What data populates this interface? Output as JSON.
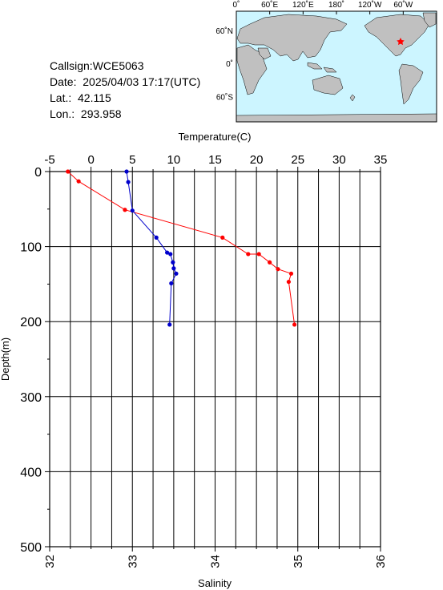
{
  "info": {
    "callsign": "Callsign:WCE5063",
    "date": "Date:  2025/04/03 17:17(UTC)",
    "lat": "Lat.:  42.115",
    "lon": "Lon.:  293.958"
  },
  "map": {
    "top_labels": [
      "0˚",
      "60˚E",
      "120˚E",
      "180˚",
      "120˚W",
      "60˚W"
    ],
    "left_labels": [
      "60˚N",
      "0˚",
      "60˚S"
    ],
    "marker_color": "#ff0000",
    "ocean_color": "#ccf5ff",
    "land_color": "#c0c0c0"
  },
  "chart_data": {
    "type": "line",
    "top_axis_label": "Temperature(C)",
    "bottom_axis_label": "Salinity",
    "ylabel": "Depth(m)",
    "temperature_ticks": [
      "-5",
      "0",
      "5",
      "10",
      "15",
      "20",
      "25",
      "30",
      "35"
    ],
    "salinity_ticks": [
      "32",
      "33",
      "34",
      "35",
      "36"
    ],
    "depth_ticks": [
      "0",
      "100",
      "200",
      "300",
      "400",
      "500"
    ],
    "temperature_range": [
      -5,
      35
    ],
    "salinity_range": [
      32,
      36
    ],
    "depth_range": [
      0,
      500
    ],
    "grid": true,
    "series": [
      {
        "axis": "temperature",
        "color": "#ff0000",
        "depth": [
          0,
          13,
          51,
          88,
          110,
          110,
          121,
          130,
          136,
          147,
          204
        ],
        "values": [
          -2.8,
          -1.5,
          4.1,
          15.9,
          19.0,
          20.3,
          21.6,
          22.6,
          24.2,
          23.9,
          24.6
        ]
      },
      {
        "axis": "salinity",
        "color": "#0000cc",
        "depth": [
          0,
          14,
          52,
          88,
          108,
          110,
          121,
          129,
          136,
          149,
          204
        ],
        "values": [
          32.93,
          32.95,
          33.0,
          33.29,
          33.42,
          33.46,
          33.49,
          33.5,
          33.53,
          33.47,
          33.45
        ]
      }
    ]
  }
}
